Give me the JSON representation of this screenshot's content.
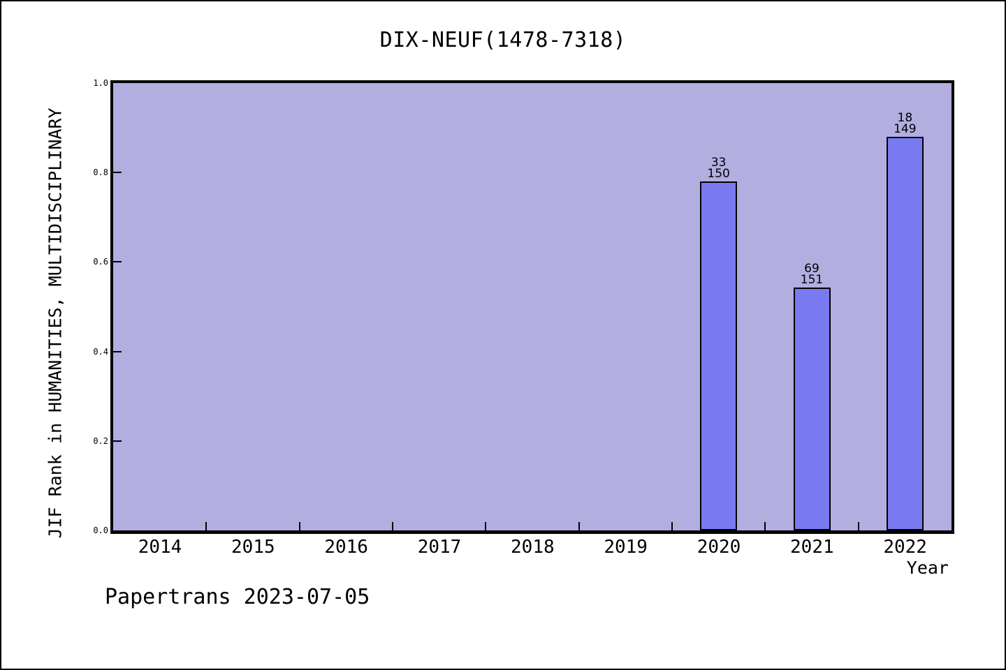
{
  "figure": {
    "watermark": "Papertrans 2023-07-05"
  },
  "chart_data": {
    "type": "bar",
    "title": "DIX-NEUF(1478-7318)",
    "xlabel": "Year",
    "ylabel": "JIF Rank in HUMANITIES, MULTIDISCIPLINARY",
    "categories": [
      "2014",
      "2015",
      "2016",
      "2017",
      "2018",
      "2019",
      "2020",
      "2021",
      "2022"
    ],
    "xlim": [
      2013.5,
      2022.5
    ],
    "ylim": [
      0,
      1
    ],
    "ytick_labels": [
      "0.0",
      "0.2",
      "0.4",
      "0.6",
      "0.8",
      "1.0"
    ],
    "ytick_values": [
      0.0,
      0.2,
      0.4,
      0.6,
      0.8,
      1.0
    ],
    "grid": false,
    "legend": null,
    "bars": [
      {
        "year": 2020,
        "rank": 33,
        "total": 150,
        "value": 0.78,
        "label_lines": "33\n150"
      },
      {
        "year": 2021,
        "rank": 69,
        "total": 151,
        "value": 0.543,
        "label_lines": "69\n151"
      },
      {
        "year": 2022,
        "rank": 18,
        "total": 149,
        "value": 0.8792,
        "label_lines": "18\n149"
      }
    ],
    "colors": {
      "bar_fill": "#7a7af0",
      "bar_edge": "#000000",
      "plot_bg": "#b2aee0",
      "fig_bg": "#ffffff",
      "text": "#000000"
    }
  }
}
